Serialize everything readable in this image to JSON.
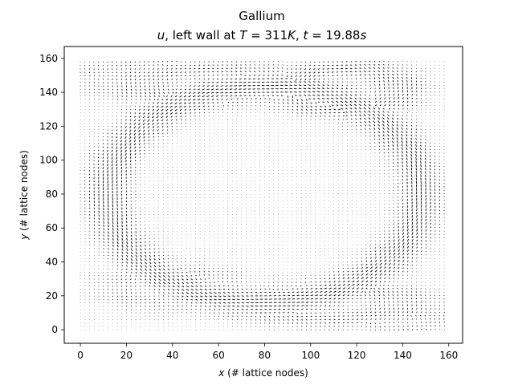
{
  "chart_data": {
    "type": "quiver",
    "title": "Gallium",
    "subtitle_parts": {
      "var": "u",
      "mid": ", left wall at ",
      "T_sym": "T",
      "T_val": " = 311",
      "T_unit": "K",
      "sep": ", ",
      "t_sym": "t",
      "t_val": " = 19.88",
      "t_unit": "s"
    },
    "xlabel_parts": {
      "var": "x",
      "rest": " (# lattice nodes)"
    },
    "ylabel_parts": {
      "var": "y",
      "rest": " (# lattice nodes)"
    },
    "xlim": [
      -7,
      166
    ],
    "ylim": [
      -8,
      167
    ],
    "x_ticks": [
      0,
      20,
      40,
      60,
      80,
      100,
      120,
      140,
      160
    ],
    "y_ticks": [
      0,
      20,
      40,
      60,
      80,
      100,
      120,
      140,
      160
    ],
    "grid": false,
    "field_extent": {
      "x": [
        0,
        159
      ],
      "y": [
        0,
        159
      ]
    },
    "vortices": [
      {
        "cx": 80,
        "cy": 80,
        "rx": 68,
        "ry": 64,
        "w": 8,
        "s": 1.0,
        "ang": 0
      },
      {
        "cx": 55,
        "cy": 145,
        "rx": 30,
        "ry": 8,
        "w": 6,
        "s": 0.55,
        "ang": 0
      },
      {
        "cx": 110,
        "cy": 15,
        "rx": 30,
        "ry": 9,
        "w": 6,
        "s": 0.5,
        "ang": 0
      },
      {
        "cx": 115,
        "cy": 142,
        "rx": 24,
        "ry": 12,
        "w": 6,
        "s": 0.7,
        "ang": 0
      },
      {
        "cx": 40,
        "cy": 25,
        "rx": 22,
        "ry": 10,
        "w": 6,
        "s": 0.35,
        "ang": 0
      },
      {
        "cx": 28,
        "cy": 152,
        "rx": 18,
        "ry": 5,
        "w": 4,
        "s": 0.35,
        "ang": 0
      },
      {
        "cx": 140,
        "cy": 5,
        "rx": 14,
        "ry": 4,
        "w": 3,
        "s": 0.4,
        "ang": 0
      }
    ]
  }
}
